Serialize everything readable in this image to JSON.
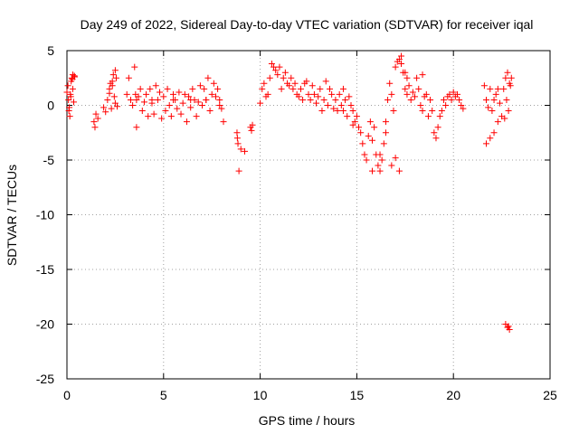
{
  "chart_data": {
    "type": "scatter",
    "title": "Day 249 of 2022, Sidereal Day-to-day VTEC variation (SDTVAR) for receiver iqal",
    "xlabel": "GPS time / hours",
    "ylabel": "SDTVAR / TECUs",
    "xlim": [
      0,
      25
    ],
    "ylim": [
      -25,
      5
    ],
    "xticks": [
      0,
      5,
      10,
      15,
      20,
      25
    ],
    "yticks": [
      5,
      0,
      -5,
      -10,
      -15,
      -20,
      -25
    ],
    "grid": true,
    "marker": "+",
    "series": [
      {
        "name": "SDTVAR",
        "color": "#ff0000",
        "x": [
          0.0,
          0.1,
          0.15,
          0.2,
          0.25,
          0.3,
          0.35,
          0.4,
          0.05,
          0.12,
          0.22,
          0.3,
          0.38,
          0.08,
          0.18,
          0.28,
          1.4,
          1.45,
          1.5,
          1.6,
          1.9,
          2.0,
          2.1,
          2.2,
          2.25,
          2.3,
          2.35,
          2.4,
          2.45,
          2.5,
          2.55,
          2.6,
          2.2,
          2.35,
          2.5,
          3.1,
          3.2,
          3.3,
          3.4,
          3.5,
          3.55,
          3.6,
          3.7,
          3.8,
          3.9,
          4.0,
          4.1,
          4.2,
          4.3,
          4.4,
          4.5,
          4.6,
          4.7,
          4.8,
          4.9,
          5.0,
          5.1,
          5.2,
          5.3,
          5.4,
          5.5,
          5.6,
          5.7,
          5.8,
          5.9,
          6.0,
          6.1,
          6.2,
          6.3,
          6.4,
          6.5,
          6.6,
          6.7,
          6.8,
          6.9,
          7.0,
          7.1,
          7.2,
          7.3,
          7.4,
          7.5,
          7.6,
          7.7,
          7.8,
          7.9,
          8.0,
          8.1,
          3.6,
          4.4,
          5.5,
          6.4,
          7.2,
          7.9,
          8.8,
          8.85,
          8.9,
          9.0,
          9.2,
          9.5,
          9.55,
          9.6,
          8.82,
          10.0,
          10.1,
          10.2,
          10.3,
          10.4,
          10.5,
          10.6,
          10.7,
          10.8,
          10.9,
          11.0,
          11.1,
          11.2,
          11.3,
          11.4,
          11.5,
          11.6,
          11.7,
          11.8,
          11.9,
          12.0,
          12.1,
          12.2,
          12.3,
          12.4,
          12.5,
          12.6,
          12.7,
          12.8,
          12.9,
          13.0,
          13.1,
          13.2,
          13.3,
          13.4,
          13.5,
          13.6,
          13.7,
          13.8,
          13.9,
          14.0,
          14.1,
          14.2,
          14.3,
          14.4,
          14.5,
          14.6,
          14.7,
          14.8,
          14.9,
          15.0,
          15.1,
          15.2,
          15.3,
          15.4,
          15.5,
          15.6,
          15.7,
          15.8,
          15.9,
          16.0,
          16.1,
          16.2,
          16.3,
          16.4,
          16.5,
          16.6,
          16.7,
          16.8,
          16.9,
          17.0,
          17.1,
          17.2,
          17.3,
          17.4,
          17.5,
          17.6,
          17.7,
          17.8,
          17.9,
          18.0,
          18.1,
          18.2,
          18.3,
          18.4,
          18.5,
          18.6,
          18.7,
          18.8,
          18.9,
          19.0,
          19.1,
          19.2,
          19.3,
          19.4,
          19.5,
          19.6,
          19.7,
          19.8,
          19.9,
          20.0,
          20.1,
          20.2,
          20.3,
          20.4,
          20.5,
          16.8,
          17.0,
          17.2,
          16.5,
          17.5,
          17.3,
          17.6,
          18.4,
          16.2,
          15.8,
          14.8,
          14.3,
          21.6,
          21.7,
          21.8,
          21.9,
          22.0,
          22.1,
          22.2,
          22.3,
          22.4,
          22.5,
          21.7,
          21.9,
          22.1,
          22.3,
          22.6,
          22.7,
          22.8,
          22.9,
          23.0,
          22.75,
          22.85,
          22.65,
          22.95,
          22.7,
          22.8,
          22.9,
          22.85
        ],
        "y": [
          1.2,
          -0.5,
          -1.0,
          0.8,
          2.5,
          2.8,
          0.3,
          2.6,
          1.8,
          -0.2,
          2.2,
          1.5,
          2.7,
          0.5,
          1.0,
          2.4,
          -1.5,
          -2.0,
          -0.8,
          -1.2,
          -0.2,
          -0.6,
          0.5,
          1.5,
          2.0,
          -0.3,
          1.8,
          2.8,
          0.8,
          3.2,
          2.5,
          -0.1,
          1.1,
          2.2,
          0.2,
          1.0,
          2.5,
          0.5,
          0.0,
          3.5,
          1.0,
          -2.0,
          0.8,
          1.5,
          -0.5,
          0.3,
          1.0,
          -1.0,
          1.5,
          0.2,
          -0.8,
          1.8,
          0.5,
          1.2,
          -1.2,
          0.8,
          -0.5,
          1.5,
          0.0,
          -1.0,
          1.0,
          0.5,
          -0.3,
          1.2,
          -0.8,
          0.2,
          1.0,
          -1.5,
          0.8,
          -0.2,
          1.5,
          0.5,
          -1.0,
          0.3,
          1.8,
          0.0,
          1.5,
          0.5,
          2.5,
          -0.5,
          1.0,
          2.0,
          0.8,
          1.5,
          0.0,
          -0.3,
          -1.5,
          0.5,
          0.5,
          0.5,
          0.5,
          0.5,
          0.5,
          -2.5,
          -3.5,
          -6.0,
          -4.0,
          -4.2,
          -2.0,
          -2.3,
          -1.8,
          -3.0,
          0.2,
          1.5,
          2.0,
          0.8,
          1.0,
          2.5,
          3.8,
          3.5,
          3.2,
          2.8,
          3.5,
          1.5,
          2.5,
          3.0,
          2.0,
          1.8,
          2.5,
          1.5,
          2.0,
          1.0,
          0.8,
          1.5,
          0.5,
          2.0,
          2.2,
          1.0,
          0.5,
          1.8,
          1.0,
          0.2,
          0.8,
          1.5,
          -0.5,
          0.5,
          2.2,
          0.0,
          1.5,
          1.0,
          -0.3,
          0.5,
          -0.5,
          1.0,
          0.0,
          1.5,
          0.5,
          -1.0,
          0.8,
          0.0,
          -0.5,
          -1.5,
          -1.0,
          -2.0,
          -2.5,
          -3.5,
          -4.5,
          -5.0,
          -2.8,
          -1.5,
          -3.2,
          -2.0,
          -4.5,
          -5.5,
          -6.0,
          -5.0,
          -3.5,
          -1.5,
          0.5,
          2.0,
          1.0,
          -0.5,
          3.5,
          4.0,
          4.2,
          3.8,
          3.0,
          1.5,
          2.5,
          1.8,
          0.5,
          1.2,
          0.8,
          2.5,
          1.5,
          0.0,
          -0.5,
          0.8,
          1.0,
          -1.0,
          0.5,
          -0.5,
          -2.5,
          -3.0,
          -2.0,
          -1.0,
          -0.5,
          0.5,
          0.0,
          0.8,
          1.0,
          0.5,
          1.2,
          0.8,
          1.0,
          0.5,
          0.0,
          -0.3,
          -5.5,
          -4.8,
          -6.0,
          -2.5,
          3.0,
          4.5,
          1.0,
          2.8,
          -4.5,
          -6.0,
          -1.8,
          -0.5,
          1.8,
          0.5,
          -0.2,
          1.5,
          -0.5,
          0.5,
          1.0,
          1.5,
          0.2,
          -1.0,
          -3.5,
          -3.0,
          -2.5,
          -1.5,
          1.5,
          2.5,
          3.0,
          2.0,
          2.5,
          0.5,
          -0.5,
          -1.2,
          1.8,
          -20.0,
          -20.3,
          -20.5,
          -20.2
        ]
      }
    ]
  }
}
